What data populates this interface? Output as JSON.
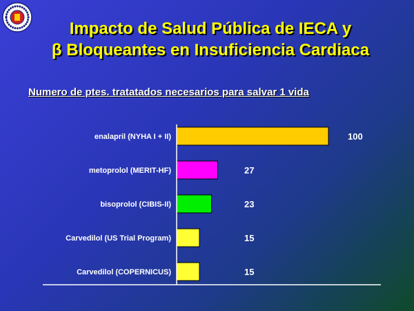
{
  "title_line1": "Impacto de Salud Pública de IECA y",
  "title_beta": "β",
  "title_line2": " Bloqueantes en Insuficiencia Cardiaca",
  "subtitle": "Numero de ptes. tratatados necesarios para salvar 1 vida",
  "logo_icon": "university-seal-icon",
  "chart_data": {
    "type": "bar",
    "orientation": "horizontal",
    "categories": [
      "enalapril (NYHA I + II)",
      "metoprolol (MERIT-HF)",
      "bisoprolol (CIBIS-II)",
      "Carvedilol (US Trial Program)",
      "Carvedilol (COPERNICUS)"
    ],
    "values": [
      100,
      27,
      23,
      15,
      15
    ],
    "colors": [
      "#ffcc00",
      "#ff00ff",
      "#00ee00",
      "#ffff33",
      "#ffff33"
    ],
    "xlim": [
      0,
      100
    ],
    "grid": false,
    "legend": "none"
  }
}
